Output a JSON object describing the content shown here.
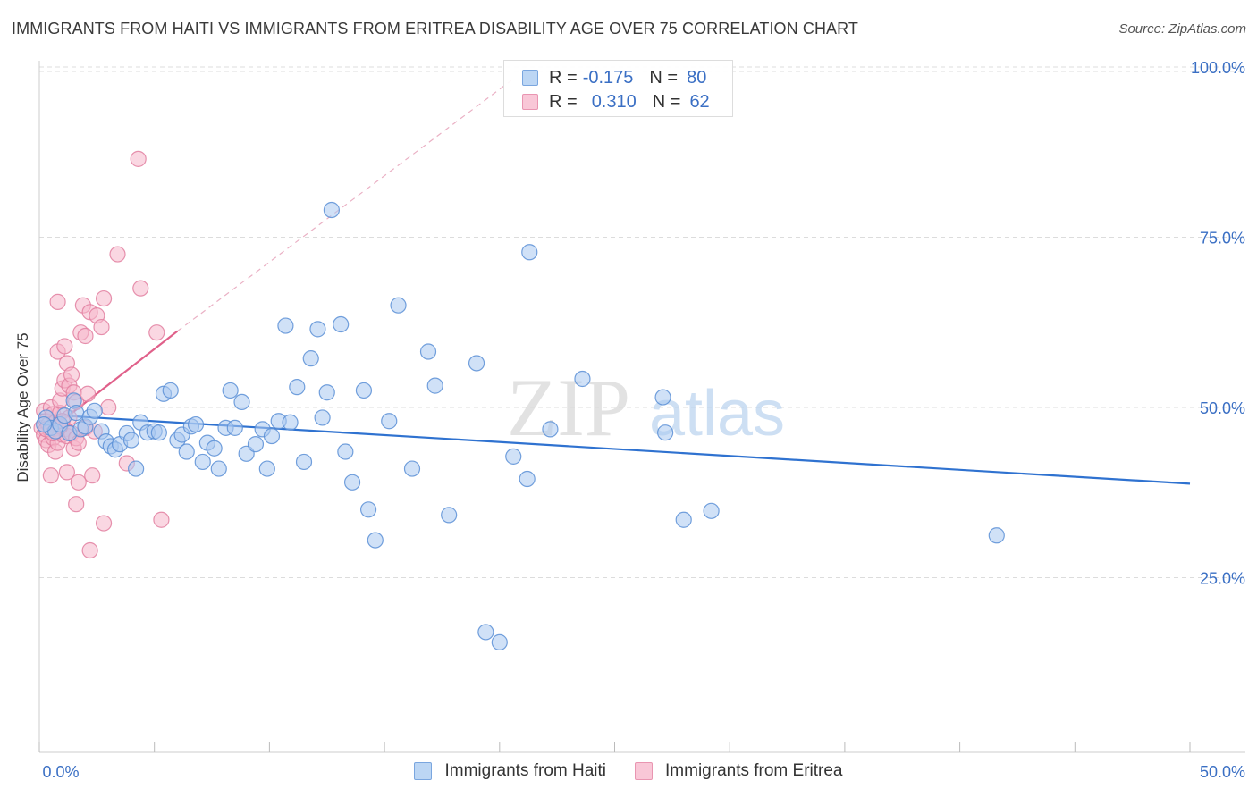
{
  "title": "IMMIGRANTS FROM HAITI VS IMMIGRANTS FROM ERITREA DISABILITY AGE OVER 75 CORRELATION CHART",
  "source": "Source: ZipAtlas.com",
  "watermark": {
    "zip": "ZIP",
    "atlas": "atlas"
  },
  "legend": {
    "r_label": "R =",
    "n_label": "N =",
    "haiti": {
      "r": "-0.175",
      "n": "80"
    },
    "eritrea": {
      "r": "0.310",
      "n": "62"
    }
  },
  "colors": {
    "haiti_fill": "#a9c9f0",
    "haiti_stroke": "#5b8fd6",
    "haiti_line": "#2f72d0",
    "eritrea_fill": "#f6b6cb",
    "eritrea_stroke": "#e27fa0",
    "eritrea_line": "#e0608a",
    "axis_text": "#3a6fc4",
    "grid": "#dcdcdc"
  },
  "chart_data": {
    "type": "scatter",
    "title": "IMMIGRANTS FROM HAITI VS IMMIGRANTS FROM ERITREA DISABILITY AGE OVER 75 CORRELATION CHART",
    "xlabel": "",
    "ylabel": "Disability Age Over 75",
    "xlim": [
      0,
      50
    ],
    "ylim": [
      0,
      100
    ],
    "x_tick_labels": [
      "0.0%",
      "50.0%"
    ],
    "y_ticks": [
      25,
      50,
      75,
      100
    ],
    "y_tick_labels": [
      "25.0%",
      "50.0%",
      "75.0%",
      "100.0%"
    ],
    "legend_position": "top-center",
    "series": [
      {
        "name": "Immigrants from Haiti",
        "color": "#a9c9f0",
        "r": -0.175,
        "n": 80,
        "trend": {
          "x": [
            0,
            50
          ],
          "y": [
            49.0,
            38.8
          ]
        },
        "points": [
          [
            0.3,
            48.5
          ],
          [
            0.5,
            47.0
          ],
          [
            0.7,
            46.5
          ],
          [
            0.9,
            47.5
          ],
          [
            1.1,
            48.8
          ],
          [
            1.3,
            46.2
          ],
          [
            1.5,
            51.0
          ],
          [
            1.6,
            49.2
          ],
          [
            1.8,
            46.8
          ],
          [
            2.0,
            47.2
          ],
          [
            2.2,
            48.6
          ],
          [
            2.4,
            49.5
          ],
          [
            2.7,
            46.5
          ],
          [
            2.9,
            45.0
          ],
          [
            3.1,
            44.3
          ],
          [
            3.3,
            43.8
          ],
          [
            3.5,
            44.6
          ],
          [
            3.8,
            46.2
          ],
          [
            4.0,
            45.2
          ],
          [
            4.2,
            41.0
          ],
          [
            4.4,
            47.8
          ],
          [
            4.7,
            46.3
          ],
          [
            5.0,
            46.5
          ],
          [
            5.2,
            46.3
          ],
          [
            5.4,
            52.0
          ],
          [
            5.7,
            52.5
          ],
          [
            6.0,
            45.2
          ],
          [
            6.2,
            46.0
          ],
          [
            6.4,
            43.5
          ],
          [
            6.6,
            47.2
          ],
          [
            6.8,
            47.5
          ],
          [
            7.1,
            42.0
          ],
          [
            7.3,
            44.8
          ],
          [
            7.6,
            44.0
          ],
          [
            7.8,
            41.0
          ],
          [
            8.1,
            47.0
          ],
          [
            8.3,
            52.5
          ],
          [
            8.5,
            47.0
          ],
          [
            8.8,
            50.8
          ],
          [
            9.0,
            43.2
          ],
          [
            9.4,
            44.6
          ],
          [
            9.7,
            46.8
          ],
          [
            9.9,
            41.0
          ],
          [
            10.1,
            45.8
          ],
          [
            10.4,
            48.0
          ],
          [
            10.7,
            62.0
          ],
          [
            10.9,
            47.8
          ],
          [
            11.2,
            53.0
          ],
          [
            11.5,
            42.0
          ],
          [
            11.8,
            57.2
          ],
          [
            12.1,
            61.5
          ],
          [
            12.3,
            48.5
          ],
          [
            12.5,
            52.2
          ],
          [
            12.7,
            79.0
          ],
          [
            13.1,
            62.2
          ],
          [
            13.3,
            43.5
          ],
          [
            13.6,
            39.0
          ],
          [
            14.1,
            52.5
          ],
          [
            14.3,
            35.0
          ],
          [
            14.6,
            30.5
          ],
          [
            15.2,
            48.0
          ],
          [
            15.6,
            65.0
          ],
          [
            16.2,
            41.0
          ],
          [
            16.9,
            58.2
          ],
          [
            17.2,
            53.2
          ],
          [
            17.8,
            34.2
          ],
          [
            19.0,
            56.5
          ],
          [
            19.4,
            17.0
          ],
          [
            20.0,
            15.5
          ],
          [
            20.6,
            42.8
          ],
          [
            21.2,
            39.5
          ],
          [
            21.3,
            72.8
          ],
          [
            22.2,
            46.8
          ],
          [
            23.6,
            54.2
          ],
          [
            27.1,
            51.5
          ],
          [
            27.2,
            46.3
          ],
          [
            28.0,
            33.5
          ],
          [
            29.2,
            34.8
          ],
          [
            41.6,
            31.2
          ],
          [
            0.2,
            47.5
          ]
        ]
      },
      {
        "name": "Immigrants from Eritrea",
        "color": "#f6b6cb",
        "r": 0.31,
        "n": 62,
        "trend": {
          "x": [
            0.2,
            6.0
          ],
          "y": [
            46.0,
            61.2
          ]
        },
        "trend_extension": {
          "x": [
            6.0,
            20.5
          ],
          "y": [
            61.2,
            98.0
          ]
        },
        "points": [
          [
            0.1,
            47.0
          ],
          [
            0.2,
            49.5
          ],
          [
            0.2,
            46.0
          ],
          [
            0.3,
            48.0
          ],
          [
            0.3,
            45.2
          ],
          [
            0.4,
            47.5
          ],
          [
            0.4,
            44.5
          ],
          [
            0.5,
            46.5
          ],
          [
            0.5,
            50.0
          ],
          [
            0.5,
            40.0
          ],
          [
            0.6,
            49.0
          ],
          [
            0.6,
            45.5
          ],
          [
            0.7,
            47.8
          ],
          [
            0.7,
            43.5
          ],
          [
            0.8,
            44.8
          ],
          [
            0.8,
            65.5
          ],
          [
            0.8,
            58.2
          ],
          [
            0.9,
            49.2
          ],
          [
            0.9,
            51.0
          ],
          [
            1.0,
            52.8
          ],
          [
            1.0,
            46.0
          ],
          [
            1.1,
            54.0
          ],
          [
            1.1,
            59.0
          ],
          [
            1.1,
            46.8
          ],
          [
            1.2,
            56.5
          ],
          [
            1.2,
            45.8
          ],
          [
            1.2,
            40.5
          ],
          [
            1.3,
            53.2
          ],
          [
            1.3,
            48.5
          ],
          [
            1.4,
            54.8
          ],
          [
            1.4,
            46.2
          ],
          [
            1.5,
            52.2
          ],
          [
            1.5,
            44.0
          ],
          [
            1.6,
            50.8
          ],
          [
            1.6,
            45.5
          ],
          [
            1.6,
            35.8
          ],
          [
            1.7,
            44.8
          ],
          [
            1.7,
            39.0
          ],
          [
            1.8,
            61.0
          ],
          [
            1.9,
            65.0
          ],
          [
            2.0,
            47.0
          ],
          [
            2.0,
            60.5
          ],
          [
            2.1,
            52.0
          ],
          [
            2.2,
            64.0
          ],
          [
            2.2,
            29.0
          ],
          [
            2.3,
            40.0
          ],
          [
            2.4,
            46.5
          ],
          [
            2.5,
            63.5
          ],
          [
            2.7,
            61.8
          ],
          [
            2.8,
            66.0
          ],
          [
            2.8,
            33.0
          ],
          [
            3.0,
            50.0
          ],
          [
            3.4,
            72.5
          ],
          [
            3.8,
            41.8
          ],
          [
            4.3,
            86.5
          ],
          [
            4.4,
            67.5
          ],
          [
            5.1,
            61.0
          ],
          [
            5.3,
            33.5
          ],
          [
            0.9,
            47.2
          ],
          [
            0.3,
            46.8
          ],
          [
            0.6,
            46.2
          ],
          [
            1.0,
            48.0
          ]
        ]
      }
    ]
  }
}
